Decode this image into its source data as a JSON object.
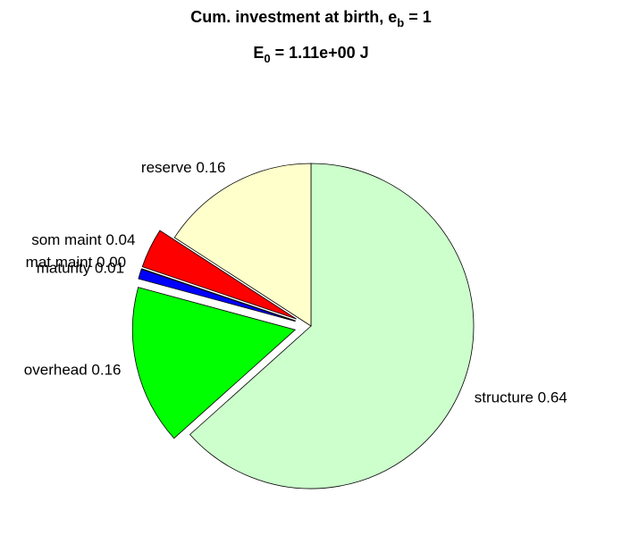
{
  "chart_data": {
    "type": "pie",
    "title": {
      "text": "Cum. investment at birth, e",
      "subscript": "b",
      "suffix": " = 1"
    },
    "subtitle": {
      "text": "E",
      "subscript": "0",
      "suffix": " = 1.11e+00 J"
    },
    "categories": [
      "structure",
      "overhead",
      "maturity",
      "mat maint",
      "som maint",
      "reserve"
    ],
    "values": [
      0.64,
      0.16,
      0.01,
      0.0,
      0.04,
      0.16
    ],
    "value_labels": [
      "0.64",
      "0.16",
      "0.01",
      "0.00",
      "0.04",
      "0.16"
    ],
    "colors": [
      "#ccffcc",
      "#00ff00",
      "#0000ff",
      "#000000",
      "#ff0000",
      "#ffffcc"
    ],
    "explode": [
      false,
      true,
      true,
      true,
      true,
      false
    ]
  }
}
